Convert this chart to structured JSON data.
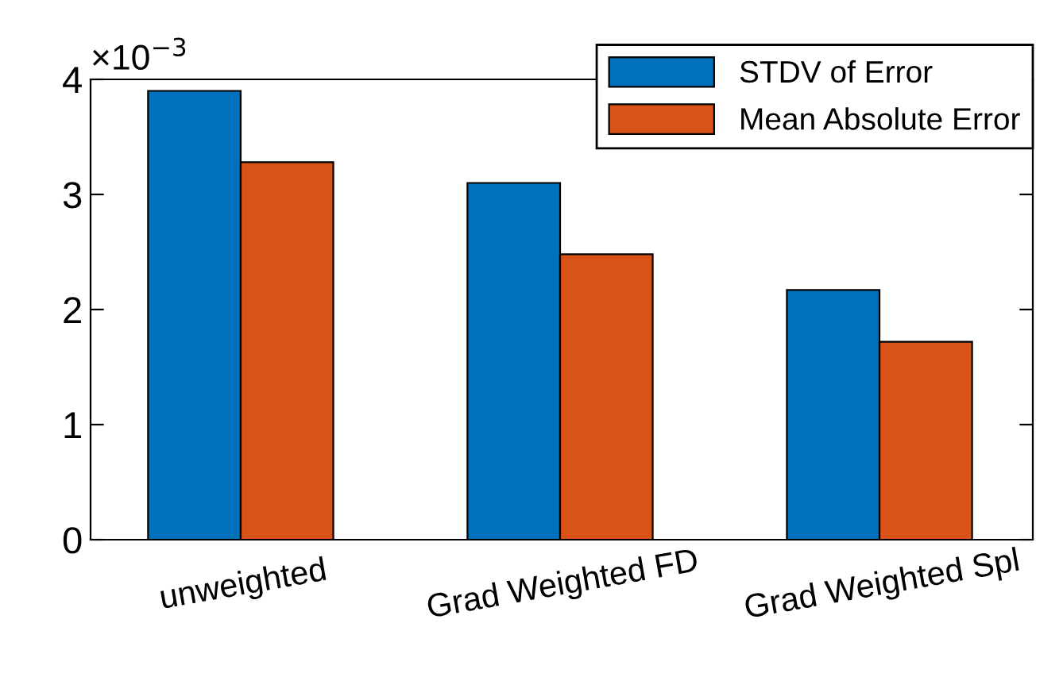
{
  "chart_data": {
    "type": "bar",
    "categories": [
      "unweighted",
      "Grad Weighted FD",
      "Grad Weighted Spl"
    ],
    "series": [
      {
        "name": "STDV of Error",
        "color": "#0072bd",
        "values": [
          3.9,
          3.1,
          2.17
        ]
      },
      {
        "name": "Mean Absolute Error",
        "color": "#d95319",
        "values": [
          3.28,
          2.48,
          1.72
        ]
      }
    ],
    "ylim": [
      0,
      4
    ],
    "yticks": [
      0,
      1,
      2,
      3,
      4
    ],
    "annotations": [
      "×10$^{−3}$"
    ],
    "legend": "top right",
    "grid": false
  }
}
